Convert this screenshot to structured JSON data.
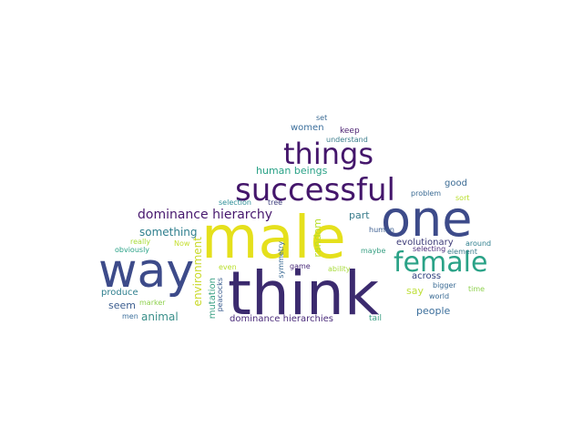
{
  "cloud": {
    "words": [
      {
        "text": "think",
        "color": "#3b2a6e"
      },
      {
        "text": "male",
        "color": "#e5e01c"
      },
      {
        "text": "one",
        "color": "#3d4b8a"
      },
      {
        "text": "way",
        "color": "#3d4b8a"
      },
      {
        "text": "successful",
        "color": "#44166b"
      },
      {
        "text": "things",
        "color": "#44166b"
      },
      {
        "text": "female",
        "color": "#2aa287"
      },
      {
        "text": "dominance hierarchy",
        "color": "#47186e"
      },
      {
        "text": "human beings",
        "color": "#2aa287"
      },
      {
        "text": "something",
        "color": "#2f7f8e"
      },
      {
        "text": "animal",
        "color": "#3a8f8a"
      },
      {
        "text": "environment",
        "color": "#c9d929"
      },
      {
        "text": "random",
        "color": "#b8de2a"
      },
      {
        "text": "part",
        "color": "#3b7d8c"
      },
      {
        "text": "say",
        "color": "#bfe03b"
      },
      {
        "text": "people",
        "color": "#3c6f9c"
      },
      {
        "text": "dominance hierarchies",
        "color": "#4a2b7a"
      },
      {
        "text": "mutation",
        "color": "#3aa084"
      },
      {
        "text": "produce",
        "color": "#2f7f8e"
      },
      {
        "text": "seem",
        "color": "#3b5d8f"
      },
      {
        "text": "good",
        "color": "#3b6b94"
      },
      {
        "text": "evolutionary",
        "color": "#3d3b78"
      },
      {
        "text": "across",
        "color": "#2f3f7e"
      },
      {
        "text": "women",
        "color": "#3c6f9c"
      },
      {
        "text": "keep",
        "color": "#4a1f70"
      },
      {
        "text": "understand",
        "color": "#3b7d8c"
      },
      {
        "text": "set",
        "color": "#3b6b94"
      },
      {
        "text": "selection",
        "color": "#2f8f98"
      },
      {
        "text": "tree",
        "color": "#3f3f7e"
      },
      {
        "text": "problem",
        "color": "#3b6b94"
      },
      {
        "text": "sort",
        "color": "#b8de2a"
      },
      {
        "text": "really",
        "color": "#a8db3a"
      },
      {
        "text": "Now",
        "color": "#c5df2e"
      },
      {
        "text": "obviously",
        "color": "#2aa287"
      },
      {
        "text": "marker",
        "color": "#8fd14f"
      },
      {
        "text": "men",
        "color": "#3c6f9c"
      },
      {
        "text": "even",
        "color": "#b8de2a"
      },
      {
        "text": "peacocks",
        "color": "#3b5d8f"
      },
      {
        "text": "symmetry",
        "color": "#3b6b94"
      },
      {
        "text": "game",
        "color": "#4a2b7a"
      },
      {
        "text": "ability",
        "color": "#a8db3a"
      },
      {
        "text": "maybe",
        "color": "#3aa084"
      },
      {
        "text": "human",
        "color": "#3b5d8f"
      },
      {
        "text": "selecting",
        "color": "#4a2b7a"
      },
      {
        "text": "element",
        "color": "#3b7d8c"
      },
      {
        "text": "around",
        "color": "#2f7f8e"
      },
      {
        "text": "bigger",
        "color": "#3b6b94"
      },
      {
        "text": "time",
        "color": "#8fd14f"
      },
      {
        "text": "world",
        "color": "#3b6b94"
      },
      {
        "text": "tail",
        "color": "#3aa084"
      }
    ]
  }
}
